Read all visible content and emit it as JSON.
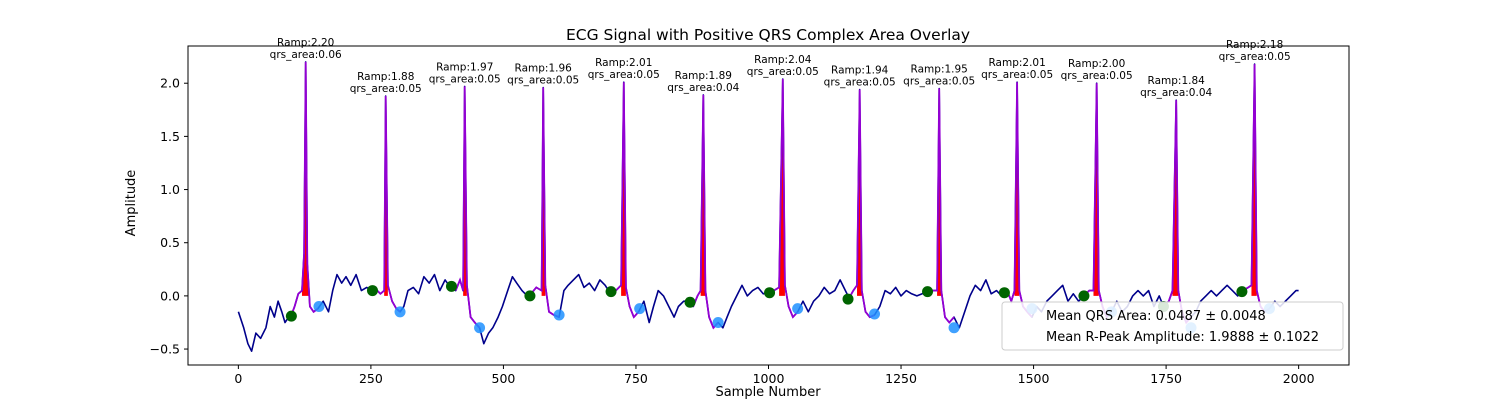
{
  "chart_data": {
    "type": "line",
    "title": "ECG Signal with Positive QRS Complex Area Overlay",
    "xlabel": "Sample Number",
    "ylabel": "Amplitude",
    "xlim": [
      -95,
      2095
    ],
    "ylim": [
      -0.65,
      2.35
    ],
    "xticks": [
      0,
      250,
      500,
      750,
      1000,
      1250,
      1500,
      1750,
      2000
    ],
    "xtick_labels": [
      "0",
      "250",
      "500",
      "750",
      "1000",
      "1250",
      "1500",
      "1750",
      "2000"
    ],
    "yticks": [
      -0.5,
      0.0,
      0.5,
      1.0,
      1.5,
      2.0
    ],
    "ytick_labels": [
      "−0.5",
      "0.0",
      "0.5",
      "1.0",
      "1.5",
      "2.0"
    ],
    "grid": false,
    "legend_position": "lower-right",
    "colors": {
      "ecg": "#00008b",
      "qrs_segment": "#9400d3",
      "qrs_area_fill": "#ff0000",
      "onset_marker": "#006400",
      "offset_marker": "#1e90ff"
    },
    "series": [
      {
        "values": [
          [
            0,
            -0.15
          ],
          [
            10,
            -0.3
          ],
          [
            18,
            -0.45
          ],
          [
            25,
            -0.52
          ],
          [
            33,
            -0.35
          ],
          [
            42,
            -0.4
          ],
          [
            52,
            -0.3
          ],
          [
            60,
            -0.1
          ],
          [
            68,
            -0.2
          ],
          [
            75,
            -0.05
          ],
          [
            82,
            -0.15
          ],
          [
            88,
            -0.25
          ],
          [
            95,
            -0.2
          ],
          [
            100,
            -0.18
          ],
          [
            106,
            -0.1
          ],
          [
            113,
            0.02
          ],
          [
            120,
            0.05
          ],
          [
            124,
            0.4
          ],
          [
            127,
            2.2
          ],
          [
            130,
            0.3
          ],
          [
            135,
            -0.1
          ],
          [
            142,
            -0.15
          ],
          [
            150,
            -0.12
          ],
          [
            160,
            -0.05
          ],
          [
            170,
            -0.15
          ],
          [
            178,
            0.05
          ],
          [
            186,
            0.2
          ],
          [
            195,
            0.12
          ],
          [
            203,
            0.18
          ],
          [
            212,
            0.1
          ],
          [
            222,
            0.2
          ],
          [
            232,
            0.05
          ],
          [
            242,
            0.08
          ],
          [
            252,
            0.05
          ],
          [
            260,
            0.06
          ],
          [
            268,
            0.02
          ],
          [
            275,
            0.05
          ],
          [
            278,
            1.88
          ],
          [
            282,
            0.1
          ],
          [
            290,
            -0.05
          ],
          [
            298,
            -0.12
          ],
          [
            305,
            -0.15
          ],
          [
            312,
            -0.1
          ],
          [
            320,
            0.05
          ],
          [
            330,
            0.08
          ],
          [
            340,
            0.02
          ],
          [
            350,
            0.18
          ],
          [
            360,
            0.12
          ],
          [
            370,
            0.2
          ],
          [
            380,
            0.05
          ],
          [
            390,
            0.15
          ],
          [
            400,
            0.08
          ],
          [
            410,
            0.05
          ],
          [
            418,
            0.15
          ],
          [
            424,
            0.05
          ],
          [
            427,
            1.97
          ],
          [
            431,
            0.1
          ],
          [
            438,
            -0.2
          ],
          [
            446,
            -0.25
          ],
          [
            455,
            -0.3
          ],
          [
            463,
            -0.45
          ],
          [
            472,
            -0.35
          ],
          [
            480,
            -0.3
          ],
          [
            490,
            -0.2
          ],
          [
            498,
            -0.1
          ],
          [
            508,
            0.05
          ],
          [
            517,
            0.18
          ],
          [
            525,
            0.12
          ],
          [
            535,
            0.05
          ],
          [
            545,
            0.0
          ],
          [
            552,
            0.02
          ],
          [
            562,
            0.08
          ],
          [
            572,
            0.05
          ],
          [
            575,
            1.96
          ],
          [
            579,
            0.1
          ],
          [
            586,
            -0.15
          ],
          [
            595,
            -0.18
          ],
          [
            605,
            -0.2
          ],
          [
            614,
            0.05
          ],
          [
            622,
            0.1
          ],
          [
            632,
            0.15
          ],
          [
            642,
            0.2
          ],
          [
            652,
            0.08
          ],
          [
            662,
            0.12
          ],
          [
            672,
            0.05
          ],
          [
            682,
            0.15
          ],
          [
            692,
            0.1
          ],
          [
            702,
            0.02
          ],
          [
            712,
            0.05
          ],
          [
            722,
            0.1
          ],
          [
            727,
            2.01
          ],
          [
            731,
            0.08
          ],
          [
            738,
            -0.1
          ],
          [
            746,
            -0.2
          ],
          [
            755,
            -0.15
          ],
          [
            765,
            -0.05
          ],
          [
            775,
            -0.25
          ],
          [
            783,
            -0.1
          ],
          [
            792,
            0.05
          ],
          [
            802,
            0.0
          ],
          [
            812,
            -0.1
          ],
          [
            822,
            -0.2
          ],
          [
            830,
            -0.1
          ],
          [
            840,
            -0.05
          ],
          [
            850,
            -0.05
          ],
          [
            858,
            -0.1
          ],
          [
            866,
            0.0
          ],
          [
            872,
            0.05
          ],
          [
            877,
            1.89
          ],
          [
            881,
            0.05
          ],
          [
            888,
            -0.2
          ],
          [
            896,
            -0.3
          ],
          [
            905,
            -0.25
          ],
          [
            914,
            -0.3
          ],
          [
            922,
            -0.2
          ],
          [
            930,
            -0.1
          ],
          [
            940,
            0.0
          ],
          [
            950,
            0.1
          ],
          [
            960,
            0.0
          ],
          [
            970,
            0.05
          ],
          [
            980,
            0.08
          ],
          [
            990,
            0.02
          ],
          [
            1000,
            0.03
          ],
          [
            1010,
            0.05
          ],
          [
            1020,
            0.08
          ],
          [
            1027,
            2.04
          ],
          [
            1031,
            0.1
          ],
          [
            1038,
            -0.1
          ],
          [
            1046,
            -0.2
          ],
          [
            1055,
            -0.15
          ],
          [
            1065,
            -0.05
          ],
          [
            1075,
            -0.15
          ],
          [
            1085,
            -0.05
          ],
          [
            1095,
            0.0
          ],
          [
            1105,
            0.08
          ],
          [
            1115,
            0.02
          ],
          [
            1125,
            0.05
          ],
          [
            1135,
            0.15
          ],
          [
            1145,
            0.05
          ],
          [
            1152,
            -0.02
          ],
          [
            1160,
            0.05
          ],
          [
            1167,
            0.1
          ],
          [
            1172,
            1.94
          ],
          [
            1176,
            0.05
          ],
          [
            1183,
            -0.15
          ],
          [
            1191,
            -0.2
          ],
          [
            1200,
            -0.18
          ],
          [
            1210,
            -0.1
          ],
          [
            1220,
            0.05
          ],
          [
            1230,
            0.02
          ],
          [
            1240,
            0.08
          ],
          [
            1250,
            0.0
          ],
          [
            1260,
            0.05
          ],
          [
            1270,
            0.02
          ],
          [
            1280,
            0.0
          ],
          [
            1290,
            0.02
          ],
          [
            1300,
            0.04
          ],
          [
            1310,
            0.05
          ],
          [
            1318,
            0.05
          ],
          [
            1322,
            1.95
          ],
          [
            1326,
            0.05
          ],
          [
            1333,
            -0.2
          ],
          [
            1341,
            -0.25
          ],
          [
            1350,
            -0.2
          ],
          [
            1360,
            -0.3
          ],
          [
            1370,
            -0.15
          ],
          [
            1380,
            0.0
          ],
          [
            1390,
            0.1
          ],
          [
            1400,
            0.05
          ],
          [
            1410,
            0.15
          ],
          [
            1420,
            0.02
          ],
          [
            1430,
            0.05
          ],
          [
            1440,
            0.0
          ],
          [
            1450,
            0.05
          ],
          [
            1458,
            -0.05
          ],
          [
            1464,
            0.05
          ],
          [
            1469,
            2.01
          ],
          [
            1473,
            0.05
          ],
          [
            1480,
            -0.1
          ],
          [
            1488,
            -0.15
          ],
          [
            1497,
            -0.2
          ],
          [
            1506,
            -0.1
          ],
          [
            1515,
            -0.15
          ],
          [
            1525,
            -0.05
          ],
          [
            1535,
            0.0
          ],
          [
            1545,
            0.05
          ],
          [
            1555,
            0.1
          ],
          [
            1565,
            -0.05
          ],
          [
            1575,
            0.02
          ],
          [
            1585,
            -0.05
          ],
          [
            1595,
            0.0
          ],
          [
            1605,
            0.05
          ],
          [
            1613,
            0.05
          ],
          [
            1619,
            2.0
          ],
          [
            1623,
            0.05
          ],
          [
            1630,
            -0.1
          ],
          [
            1638,
            -0.2
          ],
          [
            1647,
            -0.15
          ],
          [
            1657,
            -0.05
          ],
          [
            1667,
            -0.15
          ],
          [
            1677,
            -0.1
          ],
          [
            1687,
            0.0
          ],
          [
            1697,
            0.05
          ],
          [
            1707,
            0.0
          ],
          [
            1717,
            0.05
          ],
          [
            1727,
            -0.1
          ],
          [
            1737,
            0.0
          ],
          [
            1745,
            -0.1
          ],
          [
            1755,
            -0.05
          ],
          [
            1762,
            0.05
          ],
          [
            1769,
            1.84
          ],
          [
            1773,
            0.05
          ],
          [
            1780,
            -0.15
          ],
          [
            1788,
            -0.25
          ],
          [
            1797,
            -0.2
          ],
          [
            1806,
            -0.15
          ],
          [
            1815,
            -0.05
          ],
          [
            1825,
            0.0
          ],
          [
            1835,
            0.05
          ],
          [
            1845,
            0.0
          ],
          [
            1855,
            0.05
          ],
          [
            1865,
            0.1
          ],
          [
            1875,
            0.05
          ],
          [
            1885,
            0.0
          ],
          [
            1895,
            0.05
          ],
          [
            1905,
            0.08
          ],
          [
            1911,
            0.1
          ],
          [
            1917,
            2.18
          ],
          [
            1921,
            0.05
          ],
          [
            1928,
            -0.1
          ],
          [
            1936,
            -0.15
          ],
          [
            1945,
            -0.12
          ],
          [
            1955,
            -0.05
          ],
          [
            1965,
            -0.1
          ],
          [
            1975,
            -0.05
          ],
          [
            1985,
            0.0
          ],
          [
            1995,
            0.05
          ],
          [
            2000,
            0.05
          ]
        ]
      }
    ],
    "qrs_complexes": [
      {
        "onset": 100,
        "peak": 127,
        "offset": 152,
        "onset_y": -0.19,
        "offset_y": -0.1,
        "ramp_label": "Ramp:2.20",
        "area_label": "qrs_area:0.06"
      },
      {
        "onset": 253,
        "peak": 278,
        "offset": 305,
        "onset_y": 0.05,
        "offset_y": -0.15,
        "ramp_label": "Ramp:1.88",
        "area_label": "qrs_area:0.05"
      },
      {
        "onset": 402,
        "peak": 427,
        "offset": 455,
        "onset_y": 0.09,
        "offset_y": -0.3,
        "ramp_label": "Ramp:1.97",
        "area_label": "qrs_area:0.05"
      },
      {
        "onset": 550,
        "peak": 575,
        "offset": 605,
        "onset_y": 0.0,
        "offset_y": -0.18,
        "ramp_label": "Ramp:1.96",
        "area_label": "qrs_area:0.05"
      },
      {
        "onset": 703,
        "peak": 727,
        "offset": 757,
        "onset_y": 0.04,
        "offset_y": -0.12,
        "ramp_label": "Ramp:2.01",
        "area_label": "qrs_area:0.05"
      },
      {
        "onset": 852,
        "peak": 877,
        "offset": 905,
        "onset_y": -0.06,
        "offset_y": -0.25,
        "ramp_label": "Ramp:1.89",
        "area_label": "qrs_area:0.04"
      },
      {
        "onset": 1002,
        "peak": 1027,
        "offset": 1055,
        "onset_y": 0.03,
        "offset_y": -0.12,
        "ramp_label": "Ramp:2.04",
        "area_label": "qrs_area:0.05"
      },
      {
        "onset": 1150,
        "peak": 1172,
        "offset": 1200,
        "onset_y": -0.03,
        "offset_y": -0.17,
        "ramp_label": "Ramp:1.94",
        "area_label": "qrs_area:0.05"
      },
      {
        "onset": 1300,
        "peak": 1322,
        "offset": 1350,
        "onset_y": 0.04,
        "offset_y": -0.3,
        "ramp_label": "Ramp:1.95",
        "area_label": "qrs_area:0.05"
      },
      {
        "onset": 1445,
        "peak": 1469,
        "offset": 1497,
        "onset_y": 0.03,
        "offset_y": -0.12,
        "ramp_label": "Ramp:2.01",
        "area_label": "qrs_area:0.05"
      },
      {
        "onset": 1595,
        "peak": 1619,
        "offset": 1647,
        "onset_y": 0.0,
        "offset_y": -0.15,
        "ramp_label": "Ramp:2.00",
        "area_label": "qrs_area:0.05"
      },
      {
        "onset": 1745,
        "peak": 1769,
        "offset": 1797,
        "onset_y": -0.1,
        "offset_y": -0.3,
        "ramp_label": "Ramp:1.84",
        "area_label": "qrs_area:0.04"
      },
      {
        "onset": 1893,
        "peak": 1917,
        "offset": 1945,
        "onset_y": 0.04,
        "offset_y": -0.12,
        "ramp_label": "Ramp:2.18",
        "area_label": "qrs_area:0.05"
      }
    ],
    "legend": [
      "Mean QRS Area: 0.0487 ± 0.0048",
      "Mean R-Peak Amplitude: 1.9888 ± 0.1022"
    ]
  }
}
